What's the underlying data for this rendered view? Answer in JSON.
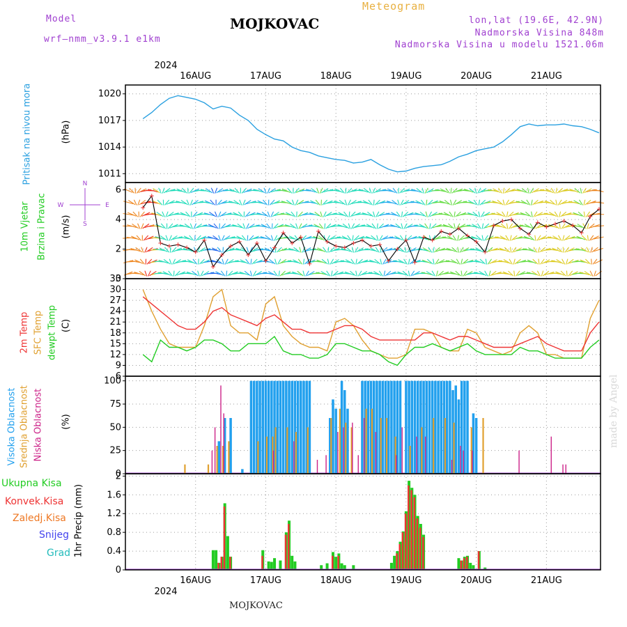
{
  "header": {
    "model_label": "Model",
    "model_name": "wrf—nmm_v3.9.1  e1km",
    "title": "MOJKOVAC",
    "meteogram": "Meteogram",
    "lonlat": "lon,lat (19.6E, 42.9N)",
    "elevation": "Nadmorska Visina 848m",
    "model_elevation": "Nadmorska Visina u modelu 1521.06m",
    "credit": "made by Angel",
    "footer_station": "MOJKOVAC"
  },
  "colors": {
    "pressure": "#2aa0e0",
    "wind_label": "#22cc22",
    "temp2m": "#ee3333",
    "sfc_temp": "#e0a030",
    "dewpt": "#22cc22",
    "high_cloud": "#22a0ee",
    "mid_cloud": "#e0a030",
    "low_cloud": "#cc2288",
    "total_precip": "#22cc22",
    "conv_precip": "#ee3333",
    "frozen_precip": "#ee7722",
    "snow": "#4444ee",
    "graupel": "#22bbbb",
    "purple_text": "#a040d0"
  },
  "time_axis": {
    "year": "2024",
    "days": [
      "16AUG",
      "17AUG",
      "18AUG",
      "19AUG",
      "20AUG",
      "21AUG"
    ]
  },
  "panels": {
    "pressure": {
      "title": "Pritisak na nivou mora",
      "unit": "(hPa)",
      "ticks": [
        "1020",
        "1017",
        "1014",
        "1011"
      ]
    },
    "wind": {
      "title_line1": "10m Vjetar",
      "title_line2": "Brzina i Pravac",
      "unit": "(m/s)",
      "ticks": [
        "6",
        "4",
        "2",
        "0"
      ],
      "compass": {
        "n": "N",
        "s": "S",
        "w": "W",
        "e": "E"
      }
    },
    "temperature": {
      "title_a": "2m Temp",
      "title_b": "SFC Temp",
      "title_c": "dewpt Temp",
      "unit": "(C)",
      "ticks": [
        "33",
        "30",
        "27",
        "24",
        "21",
        "18",
        "15",
        "12",
        "9",
        "6"
      ]
    },
    "cloud": {
      "title_a": "Visoka Oblacnost",
      "title_b": "Srednja Oblacnost",
      "title_c": "Niska Oblacnost",
      "unit": "(%)",
      "ticks": [
        "100",
        "75",
        "50",
        "25",
        "0"
      ]
    },
    "precip": {
      "legend": [
        "Ukupna Kisa",
        "Konvek.Kisa",
        "Zaledj.Kisa",
        "Snijeg",
        "Grad"
      ],
      "unit": "1hr Precip (mm)",
      "ticks": [
        "2",
        "1.6",
        "1.2",
        "0.8",
        "0.4",
        "0"
      ]
    }
  },
  "chart_data": [
    {
      "type": "line",
      "name": "pressure",
      "x_unit": "hours from 16AUG 00UTC",
      "ylim": [
        1010,
        1021
      ],
      "grid": true,
      "series": [
        {
          "name": "Pritisak na nivou mora",
          "x": [
            -6,
            -3,
            0,
            3,
            6,
            9,
            12,
            15,
            18,
            21,
            24,
            27,
            30,
            33,
            36,
            39,
            42,
            45,
            48,
            51,
            54,
            57,
            60,
            63,
            66,
            69,
            72,
            75,
            78,
            81,
            84,
            87,
            90,
            93,
            96,
            99,
            102,
            105,
            108,
            111,
            114,
            117,
            120,
            123,
            126,
            129,
            132,
            135,
            138,
            141,
            144,
            147,
            150
          ],
          "values": [
            1017.2,
            1017.9,
            1018.8,
            1019.5,
            1019.8,
            1019.6,
            1019.4,
            1019.0,
            1018.3,
            1018.6,
            1018.4,
            1017.6,
            1017.0,
            1016.0,
            1015.4,
            1014.9,
            1014.7,
            1014.0,
            1013.6,
            1013.4,
            1013.0,
            1012.8,
            1012.6,
            1012.5,
            1012.2,
            1012.3,
            1012.6,
            1012.0,
            1011.5,
            1011.2,
            1011.3,
            1011.6,
            1011.8,
            1011.9,
            1012.0,
            1012.4,
            1012.9,
            1013.2,
            1013.6,
            1013.8,
            1014.0,
            1014.6,
            1015.4,
            1016.3,
            1016.6,
            1016.4,
            1016.5,
            1016.5,
            1016.6,
            1016.4,
            1016.3,
            1016.0,
            1015.6
          ]
        }
      ]
    },
    {
      "type": "line",
      "name": "wind",
      "x_unit": "hours from 16AUG 00UTC",
      "ylim": [
        0,
        6.5
      ],
      "grid": true,
      "series": [
        {
          "name": "10m Vjetar Brzina i Pravac",
          "x": [
            -6,
            -3,
            0,
            3,
            6,
            9,
            12,
            15,
            18,
            21,
            24,
            27,
            30,
            33,
            36,
            39,
            42,
            45,
            48,
            51,
            54,
            57,
            60,
            63,
            66,
            69,
            72,
            75,
            78,
            81,
            84,
            87,
            90,
            93,
            96,
            99,
            102,
            105,
            108,
            111,
            114,
            117,
            120,
            123,
            126,
            129,
            132,
            135,
            138,
            141,
            144,
            147,
            150
          ],
          "values": [
            4.8,
            5.6,
            2.4,
            2.2,
            2.3,
            2.1,
            1.8,
            2.6,
            0.8,
            1.6,
            2.2,
            2.5,
            1.6,
            2.4,
            1.2,
            2.1,
            3.1,
            2.4,
            2.8,
            1.0,
            3.2,
            2.5,
            2.2,
            2.1,
            2.4,
            2.6,
            2.2,
            2.3,
            1.2,
            2.0,
            2.6,
            1.1,
            2.8,
            2.6,
            3.2,
            3.0,
            3.4,
            2.9,
            2.5,
            1.8,
            3.6,
            3.9,
            4.0,
            3.4,
            3.0,
            3.8,
            3.5,
            3.7,
            3.9,
            3.6,
            3.1,
            4.2,
            4.7
          ]
        }
      ]
    },
    {
      "type": "line",
      "name": "temperature",
      "x_unit": "hours from 16AUG 00UTC",
      "ylim": [
        6,
        33
      ],
      "grid": true,
      "series": [
        {
          "name": "2m Temp",
          "x": [
            -6,
            -3,
            0,
            3,
            6,
            9,
            12,
            15,
            18,
            21,
            24,
            27,
            30,
            33,
            36,
            39,
            42,
            45,
            48,
            51,
            54,
            57,
            60,
            63,
            66,
            69,
            72,
            75,
            78,
            81,
            84,
            87,
            90,
            93,
            96,
            99,
            102,
            105,
            108,
            111,
            114,
            117,
            120,
            123,
            126,
            129,
            132,
            135,
            138,
            141,
            144,
            147,
            150
          ],
          "values": [
            28,
            26,
            24,
            22,
            20,
            19,
            19,
            21,
            24,
            25,
            23,
            22,
            21,
            20,
            22,
            23,
            21,
            19,
            19,
            18,
            18,
            18,
            19,
            20,
            20,
            19,
            17,
            16,
            16,
            16,
            16,
            16,
            18,
            18,
            17,
            16,
            17,
            17,
            16,
            15,
            14,
            14,
            14,
            15,
            16,
            17,
            15,
            14,
            13,
            13,
            13,
            18,
            21
          ]
        },
        {
          "name": "SFC Temp",
          "x": [
            -6,
            -3,
            0,
            3,
            6,
            9,
            12,
            15,
            18,
            21,
            24,
            27,
            30,
            33,
            36,
            39,
            42,
            45,
            48,
            51,
            54,
            57,
            60,
            63,
            66,
            69,
            72,
            75,
            78,
            81,
            84,
            87,
            90,
            93,
            96,
            99,
            102,
            105,
            108,
            111,
            114,
            117,
            120,
            123,
            126,
            129,
            132,
            135,
            138,
            141,
            144,
            147,
            150
          ],
          "values": [
            30,
            24,
            19,
            15,
            14,
            14,
            14,
            20,
            28,
            30,
            20,
            18,
            18,
            16,
            26,
            28,
            20,
            17,
            15,
            14,
            14,
            13,
            21,
            22,
            20,
            16,
            13,
            12,
            11,
            11,
            12,
            19,
            19,
            18,
            14,
            13,
            13,
            19,
            18,
            14,
            13,
            12,
            13,
            18,
            20,
            18,
            12,
            12,
            11,
            11,
            11,
            22,
            27
          ]
        },
        {
          "name": "dewpt Temp",
          "x": [
            -6,
            -3,
            0,
            3,
            6,
            9,
            12,
            15,
            18,
            21,
            24,
            27,
            30,
            33,
            36,
            39,
            42,
            45,
            48,
            51,
            54,
            57,
            60,
            63,
            66,
            69,
            72,
            75,
            78,
            81,
            84,
            87,
            90,
            93,
            96,
            99,
            102,
            105,
            108,
            111,
            114,
            117,
            120,
            123,
            126,
            129,
            132,
            135,
            138,
            141,
            144,
            147,
            150
          ],
          "values": [
            12,
            10,
            16,
            14,
            14,
            13,
            14,
            16,
            16,
            15,
            13,
            13,
            15,
            15,
            15,
            17,
            13,
            12,
            12,
            11,
            11,
            12,
            15,
            15,
            14,
            13,
            13,
            12,
            10,
            9,
            12,
            14,
            14,
            15,
            14,
            13,
            14,
            15,
            13,
            12,
            12,
            12,
            12,
            14,
            13,
            13,
            12,
            11,
            11,
            11,
            11,
            14,
            16
          ]
        }
      ]
    },
    {
      "type": "bar",
      "name": "cloud",
      "x_unit": "hours from 16AUG 00UTC",
      "ylim": [
        0,
        105
      ],
      "grid": true,
      "series": [
        {
          "name": "Visoka Oblacnost",
          "x": [
            20,
            22,
            24,
            28,
            31,
            32,
            33,
            34,
            35,
            36,
            37,
            38,
            39,
            40,
            41,
            42,
            43,
            44,
            45,
            46,
            47,
            48,
            49,
            50,
            51,
            58,
            59,
            60,
            62,
            63,
            64,
            69,
            70,
            71,
            72,
            73,
            74,
            75,
            76,
            77,
            78,
            79,
            80,
            81,
            82,
            84,
            85,
            86,
            87,
            88,
            89,
            90,
            91,
            92,
            93,
            94,
            95,
            96,
            97,
            98,
            99,
            100,
            101,
            102,
            103,
            104,
            105,
            107,
            108
          ],
          "values": [
            35,
            60,
            60,
            5,
            100,
            100,
            100,
            100,
            100,
            100,
            100,
            100,
            100,
            100,
            100,
            100,
            100,
            100,
            100,
            100,
            100,
            100,
            100,
            100,
            100,
            60,
            80,
            70,
            100,
            90,
            70,
            100,
            100,
            100,
            100,
            100,
            100,
            100,
            100,
            100,
            100,
            100,
            100,
            100,
            100,
            100,
            100,
            100,
            100,
            100,
            100,
            100,
            100,
            100,
            100,
            100,
            100,
            100,
            100,
            100,
            100,
            90,
            95,
            80,
            100,
            100,
            100,
            65,
            60
          ]
        },
        {
          "name": "Srednja Oblacnost",
          "x": [
            8,
            16,
            19,
            21,
            23,
            33,
            36,
            38,
            39,
            43,
            46,
            50,
            58,
            61,
            63,
            65,
            70,
            72,
            75,
            77,
            80,
            85,
            89,
            93,
            97,
            100,
            106,
            110
          ],
          "values": [
            10,
            10,
            30,
            30,
            35,
            35,
            40,
            40,
            50,
            50,
            45,
            50,
            60,
            70,
            55,
            50,
            70,
            70,
            60,
            60,
            40,
            30,
            50,
            60,
            60,
            55,
            50,
            60
          ]
        },
        {
          "name": "Niska Oblacnost",
          "x": [
            18,
            19,
            21,
            22,
            39,
            46,
            54,
            57,
            61,
            63,
            66,
            68,
            70,
            74,
            81,
            83,
            88,
            91,
            100,
            103,
            104,
            107,
            123,
            134,
            138,
            139
          ],
          "values": [
            25,
            50,
            95,
            65,
            25,
            35,
            15,
            20,
            45,
            50,
            55,
            20,
            60,
            45,
            20,
            50,
            40,
            40,
            15,
            30,
            25,
            25,
            25,
            40,
            10,
            10
          ]
        }
      ]
    },
    {
      "type": "bar",
      "name": "precip",
      "x_unit": "hours from 16AUG 00UTC",
      "ylim": [
        0,
        2
      ],
      "grid": true,
      "series": [
        {
          "name": "Ukupna Kisa",
          "x": [
            18,
            19,
            20,
            21,
            22,
            23,
            24,
            35,
            37,
            38,
            39,
            41,
            43,
            44,
            45,
            46,
            55,
            57,
            59,
            60,
            61,
            62,
            63,
            66,
            79,
            80,
            81,
            82,
            83,
            84,
            85,
            86,
            87,
            88,
            89,
            90,
            102,
            103,
            104,
            105,
            106,
            107,
            109,
            111
          ],
          "values": [
            0.42,
            0.42,
            0.15,
            0.28,
            1.42,
            0.72,
            0.28,
            0.42,
            0.18,
            0.17,
            0.25,
            0.2,
            0.8,
            1.05,
            0.3,
            0.18,
            0.1,
            0.14,
            0.38,
            0.28,
            0.35,
            0.14,
            0.1,
            0.1,
            0.15,
            0.3,
            0.4,
            0.6,
            0.82,
            1.25,
            1.9,
            1.75,
            1.6,
            1.15,
            0.98,
            0.75,
            0.25,
            0.2,
            0.28,
            0.3,
            0.15,
            0.1,
            0.4,
            0.05
          ]
        },
        {
          "name": "Konvek.Kisa",
          "x": [
            20,
            21,
            22,
            24,
            35,
            43,
            44,
            59,
            61,
            81,
            82,
            83,
            84,
            85,
            86,
            87,
            88,
            89,
            90,
            103,
            104,
            105,
            109
          ],
          "values": [
            0.15,
            0.28,
            1.35,
            0.28,
            0.3,
            0.75,
            0.98,
            0.3,
            0.3,
            0.35,
            0.55,
            0.8,
            1.2,
            1.8,
            1.7,
            1.55,
            1.1,
            0.9,
            0.7,
            0.2,
            0.25,
            0.28,
            0.4
          ]
        }
      ]
    }
  ]
}
